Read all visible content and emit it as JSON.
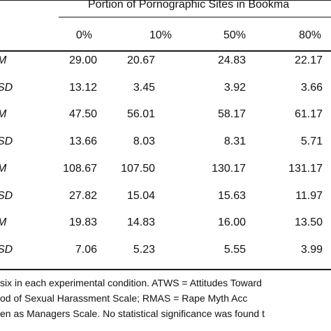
{
  "table": {
    "group_header": "Portion of Pornographic Sites in Bookma",
    "columns": [
      "0%",
      "10%",
      "50%",
      "80%"
    ],
    "rows": [
      {
        "label": "M",
        "values": [
          "29.00",
          "20.67",
          "24.83",
          "22.17"
        ]
      },
      {
        "label": "SD",
        "values": [
          "13.12",
          "3.45",
          "3.92",
          "3.66"
        ]
      },
      {
        "label": "M",
        "values": [
          "47.50",
          "56.01",
          "58.17",
          "61.17"
        ]
      },
      {
        "label": "SD",
        "values": [
          "13.66",
          "8.03",
          "8.31",
          "5.71"
        ]
      },
      {
        "label": "M",
        "values": [
          "108.67",
          "107.50",
          "130.17",
          "131.17"
        ]
      },
      {
        "label": "SD",
        "values": [
          "27.82",
          "15.04",
          "15.63",
          "11.97"
        ]
      },
      {
        "label": "M",
        "values": [
          "19.83",
          "14.83",
          "16.00",
          "13.50"
        ]
      },
      {
        "label": "SD",
        "values": [
          "7.06",
          "5.23",
          "5.55",
          "3.99"
        ]
      }
    ]
  },
  "notes": [
    "six in each experimental condition. ATWS = Attitudes Toward",
    "od of Sexual Harassment Scale; RMAS = Rape Myth Acc",
    "en as Managers Scale. No statistical significance was found t"
  ]
}
